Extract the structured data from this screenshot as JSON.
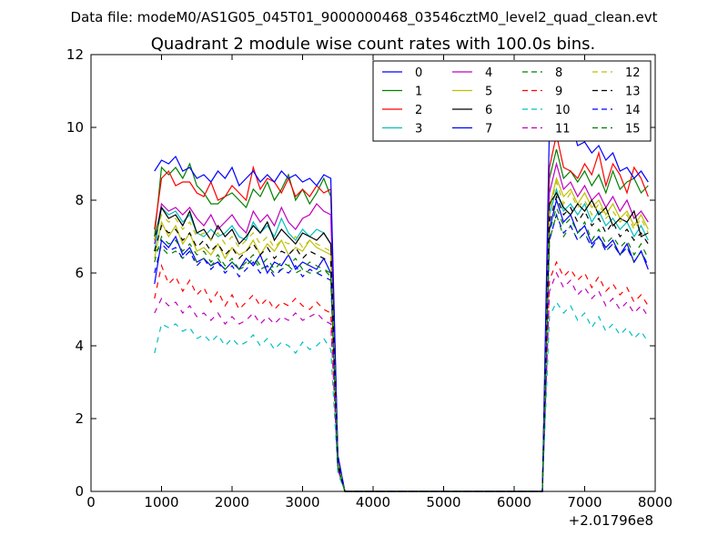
{
  "figure": {
    "suptitle": "Data file: modeM0/AS1G05_045T01_9000000468_03546cztM0_level2_quad_clean.evt"
  },
  "chart_data": {
    "type": "line",
    "title": "Quadrant 2 module wise count rates with 100.0s bins.",
    "xlabel": "",
    "ylabel": "",
    "x_offset_label": "+2.01796e8",
    "xlim": [
      0,
      8000
    ],
    "ylim": [
      0,
      12
    ],
    "xticks": [
      0,
      1000,
      2000,
      3000,
      4000,
      5000,
      6000,
      7000,
      8000
    ],
    "yticks": [
      0,
      2,
      4,
      6,
      8,
      10,
      12
    ],
    "grid": false,
    "legend": {
      "placement": "top-right",
      "columns": 4
    },
    "x": [
      900,
      1000,
      1100,
      1200,
      1300,
      1400,
      1500,
      1600,
      1700,
      1800,
      1900,
      2000,
      2100,
      2200,
      2300,
      2400,
      2500,
      2600,
      2700,
      2800,
      2900,
      3000,
      3100,
      3200,
      3300,
      3400,
      3500,
      3600,
      3700,
      3800,
      3900,
      4000,
      4100,
      4200,
      4300,
      4400,
      4500,
      4600,
      4700,
      4800,
      4900,
      5000,
      5100,
      5200,
      5300,
      5400,
      5500,
      5600,
      5700,
      5800,
      5900,
      6000,
      6100,
      6200,
      6300,
      6400,
      6500,
      6600,
      6700,
      6800,
      6900,
      7000,
      7100,
      7200,
      7300,
      7400,
      7500,
      7600,
      7700,
      7800,
      7900
    ],
    "series": [
      {
        "name": "0",
        "color": "#0000ff",
        "dash": "solid",
        "values": [
          5.7,
          6.9,
          6.7,
          7.0,
          6.5,
          6.7,
          6.3,
          6.4,
          6.2,
          6.3,
          6.1,
          6.3,
          6.1,
          6.4,
          6.2,
          6.5,
          6.0,
          6.3,
          6.2,
          6.5,
          6.1,
          6.3,
          6.2,
          6.1,
          6.4,
          6.0,
          0.8,
          0,
          0,
          0,
          0,
          0,
          0,
          0,
          0,
          0,
          0,
          0,
          0,
          0,
          0,
          0,
          0,
          0,
          0,
          0,
          0,
          0,
          0,
          0,
          0,
          0,
          0,
          0,
          0,
          0,
          7.2,
          8.0,
          7.4,
          7.6,
          7.1,
          7.3,
          6.8,
          7.0,
          6.7,
          6.9,
          6.5,
          6.8,
          6.3,
          6.6,
          6.1
        ]
      },
      {
        "name": "1",
        "color": "#008000",
        "dash": "solid",
        "values": [
          7.0,
          8.9,
          8.7,
          8.9,
          8.6,
          9.0,
          8.4,
          8.2,
          7.9,
          7.9,
          8.1,
          8.2,
          8.0,
          7.8,
          8.3,
          8.1,
          8.5,
          8.0,
          8.3,
          8.7,
          8.0,
          8.3,
          7.9,
          8.2,
          8.6,
          8.1,
          0.9,
          0,
          0,
          0,
          0,
          0,
          0,
          0,
          0,
          0,
          0,
          0,
          0,
          0,
          0,
          0,
          0,
          0,
          0,
          0,
          0,
          0,
          0,
          0,
          0,
          0,
          0,
          0,
          0,
          0,
          8.6,
          9.4,
          8.6,
          8.8,
          8.5,
          8.8,
          8.4,
          8.7,
          8.2,
          8.8,
          8.3,
          8.5,
          8.6,
          8.2,
          8.4
        ]
      },
      {
        "name": "2",
        "color": "#ff0000",
        "dash": "solid",
        "values": [
          7.2,
          8.6,
          8.8,
          8.4,
          8.5,
          8.5,
          8.2,
          8.1,
          8.5,
          8.0,
          8.1,
          8.4,
          8.2,
          8.0,
          8.9,
          8.3,
          8.6,
          8.5,
          8.2,
          8.6,
          8.1,
          8.3,
          8.1,
          8.4,
          8.2,
          8.3,
          0.9,
          0,
          0,
          0,
          0,
          0,
          0,
          0,
          0,
          0,
          0,
          0,
          0,
          0,
          0,
          0,
          0,
          0,
          0,
          0,
          0,
          0,
          0,
          0,
          0,
          0,
          0,
          0,
          0,
          0,
          8.9,
          9.8,
          8.9,
          8.8,
          8.6,
          9.0,
          8.7,
          9.3,
          8.4,
          9.0,
          8.7,
          8.2,
          8.9,
          8.6,
          8.1
        ]
      },
      {
        "name": "3",
        "color": "#00bfbf",
        "dash": "solid",
        "values": [
          6.6,
          7.8,
          7.6,
          7.7,
          7.4,
          7.6,
          7.1,
          7.0,
          7.2,
          7.0,
          7.1,
          7.3,
          7.0,
          6.9,
          7.4,
          7.1,
          7.3,
          7.0,
          7.5,
          7.1,
          6.9,
          7.2,
          7.0,
          7.2,
          7.1,
          6.8,
          0.8,
          0,
          0,
          0,
          0,
          0,
          0,
          0,
          0,
          0,
          0,
          0,
          0,
          0,
          0,
          0,
          0,
          0,
          0,
          0,
          0,
          0,
          0,
          0,
          0,
          0,
          0,
          0,
          0,
          0,
          7.6,
          8.3,
          7.7,
          7.9,
          7.6,
          7.9,
          7.4,
          7.7,
          7.3,
          7.5,
          7.2,
          7.4,
          7.0,
          7.3,
          6.9
        ]
      },
      {
        "name": "4",
        "color": "#bf00bf",
        "dash": "solid",
        "values": [
          6.8,
          7.9,
          7.7,
          7.8,
          7.6,
          7.8,
          7.5,
          7.3,
          7.6,
          7.2,
          7.4,
          7.6,
          7.3,
          7.1,
          7.7,
          7.4,
          7.6,
          7.3,
          7.8,
          7.4,
          7.2,
          7.5,
          7.6,
          7.9,
          7.7,
          7.6,
          0.8,
          0,
          0,
          0,
          0,
          0,
          0,
          0,
          0,
          0,
          0,
          0,
          0,
          0,
          0,
          0,
          0,
          0,
          0,
          0,
          0,
          0,
          0,
          0,
          0,
          0,
          0,
          0,
          0,
          0,
          8.2,
          9.0,
          8.3,
          8.5,
          8.1,
          8.4,
          8.0,
          8.2,
          7.8,
          8.1,
          7.7,
          8.0,
          7.5,
          7.7,
          7.4
        ]
      },
      {
        "name": "5",
        "color": "#bfbf00",
        "dash": "solid",
        "values": [
          6.4,
          7.4,
          7.0,
          7.3,
          6.8,
          7.1,
          6.6,
          6.7,
          6.5,
          6.8,
          6.4,
          6.7,
          6.5,
          6.6,
          6.9,
          6.5,
          6.8,
          6.6,
          6.9,
          6.5,
          6.7,
          6.6,
          6.9,
          6.7,
          6.6,
          6.5,
          0.8,
          0,
          0,
          0,
          0,
          0,
          0,
          0,
          0,
          0,
          0,
          0,
          0,
          0,
          0,
          0,
          0,
          0,
          0,
          0,
          0,
          0,
          0,
          0,
          0,
          0,
          0,
          0,
          0,
          0,
          7.8,
          8.6,
          8.1,
          8.3,
          7.9,
          8.2,
          7.8,
          8.0,
          7.6,
          7.9,
          7.5,
          7.7,
          7.3,
          7.6,
          7.2
        ]
      },
      {
        "name": "6",
        "color": "#000000",
        "dash": "solid",
        "values": [
          6.9,
          7.8,
          7.5,
          7.6,
          7.3,
          7.7,
          7.1,
          7.2,
          6.9,
          7.3,
          7.0,
          7.2,
          6.8,
          7.0,
          7.3,
          7.1,
          7.4,
          6.9,
          7.2,
          7.0,
          6.8,
          7.1,
          7.0,
          6.9,
          7.1,
          6.8,
          0.8,
          0,
          0,
          0,
          0,
          0,
          0,
          0,
          0,
          0,
          0,
          0,
          0,
          0,
          0,
          0,
          0,
          0,
          0,
          0,
          0,
          0,
          0,
          0,
          0,
          0,
          0,
          0,
          0,
          0,
          7.9,
          8.2,
          7.8,
          7.6,
          7.9,
          7.7,
          8.0,
          7.6,
          7.8,
          7.3,
          7.5,
          7.4,
          7.7,
          7.0,
          7.1
        ]
      },
      {
        "name": "7",
        "color": "#0000ff",
        "dash": "solid",
        "values": [
          8.8,
          9.1,
          9.0,
          9.2,
          8.8,
          8.9,
          8.6,
          8.7,
          8.5,
          8.8,
          8.6,
          8.9,
          8.4,
          8.6,
          8.8,
          8.5,
          8.7,
          8.5,
          8.8,
          8.6,
          8.7,
          8.5,
          8.6,
          8.4,
          8.7,
          8.6,
          1.0,
          0,
          0,
          0,
          0,
          0,
          0,
          0,
          0,
          0,
          0,
          0,
          0,
          0,
          0,
          0,
          0,
          0,
          0,
          0,
          0,
          0,
          0,
          0,
          0,
          0,
          0,
          0,
          0,
          0,
          10.1,
          10.3,
          9.7,
          10.2,
          9.5,
          9.6,
          9.3,
          9.5,
          9.1,
          9.3,
          8.8,
          8.9,
          8.6,
          8.8,
          8.5
        ]
      },
      {
        "name": "8",
        "color": "#008000",
        "dash": "dashed",
        "values": [
          6.6,
          6.7,
          6.5,
          6.6,
          6.4,
          6.6,
          6.3,
          6.4,
          6.2,
          6.4,
          6.1,
          6.3,
          6.1,
          6.2,
          6.4,
          6.1,
          6.2,
          6.0,
          6.1,
          6.2,
          6.0,
          6.1,
          6.0,
          6.0,
          6.1,
          5.9,
          0.7,
          0,
          0,
          0,
          0,
          0,
          0,
          0,
          0,
          0,
          0,
          0,
          0,
          0,
          0,
          0,
          0,
          0,
          0,
          0,
          0,
          0,
          0,
          0,
          0,
          0,
          0,
          0,
          0,
          0,
          6.9,
          7.6,
          7.0,
          7.3,
          6.9,
          7.1,
          6.7,
          7.0,
          6.6,
          6.8,
          6.5,
          6.7,
          6.3,
          6.6,
          6.2
        ]
      },
      {
        "name": "9",
        "color": "#ff0000",
        "dash": "dashed",
        "values": [
          5.3,
          6.2,
          5.7,
          5.9,
          5.5,
          5.8,
          5.4,
          5.6,
          5.2,
          5.5,
          5.1,
          5.4,
          5.0,
          5.2,
          5.4,
          5.1,
          5.3,
          5.0,
          5.2,
          5.1,
          5.3,
          5.1,
          5.0,
          5.2,
          5.0,
          4.9,
          0.6,
          0,
          0,
          0,
          0,
          0,
          0,
          0,
          0,
          0,
          0,
          0,
          0,
          0,
          0,
          0,
          0,
          0,
          0,
          0,
          0,
          0,
          0,
          0,
          0,
          0,
          0,
          0,
          0,
          0,
          5.8,
          6.3,
          5.9,
          6.1,
          5.8,
          6.0,
          5.6,
          5.9,
          5.5,
          5.7,
          5.4,
          5.6,
          5.2,
          5.4,
          5.1
        ]
      },
      {
        "name": "10",
        "color": "#00bfbf",
        "dash": "dashed",
        "values": [
          3.8,
          4.6,
          4.5,
          4.6,
          4.4,
          4.5,
          4.2,
          4.3,
          4.1,
          4.3,
          4.0,
          4.2,
          4.0,
          4.1,
          4.3,
          4.0,
          4.2,
          3.9,
          4.1,
          4.0,
          3.8,
          4.1,
          3.9,
          4.0,
          4.2,
          3.9,
          0.5,
          0,
          0,
          0,
          0,
          0,
          0,
          0,
          0,
          0,
          0,
          0,
          0,
          0,
          0,
          0,
          0,
          0,
          0,
          0,
          0,
          0,
          0,
          0,
          0,
          0,
          0,
          0,
          0,
          0,
          4.8,
          5.2,
          4.9,
          5.1,
          4.7,
          4.9,
          4.5,
          4.8,
          4.4,
          4.6,
          4.3,
          4.5,
          4.2,
          4.4,
          4.1
        ]
      },
      {
        "name": "11",
        "color": "#bf00bf",
        "dash": "dashed",
        "values": [
          4.9,
          5.3,
          5.1,
          5.2,
          4.9,
          5.1,
          4.8,
          4.9,
          4.7,
          4.9,
          4.6,
          4.8,
          4.6,
          4.7,
          4.9,
          4.6,
          4.8,
          4.6,
          4.8,
          4.7,
          4.9,
          4.7,
          4.8,
          4.9,
          4.7,
          4.6,
          0.6,
          0,
          0,
          0,
          0,
          0,
          0,
          0,
          0,
          0,
          0,
          0,
          0,
          0,
          0,
          0,
          0,
          0,
          0,
          0,
          0,
          0,
          0,
          0,
          0,
          0,
          0,
          0,
          0,
          0,
          5.5,
          6.0,
          5.6,
          5.8,
          5.4,
          5.6,
          5.3,
          5.5,
          5.1,
          5.3,
          5.0,
          5.2,
          4.9,
          5.1,
          4.8
        ]
      },
      {
        "name": "12",
        "color": "#bfbf00",
        "dash": "dashed",
        "values": [
          6.9,
          7.6,
          7.4,
          7.5,
          7.2,
          7.4,
          7.0,
          7.1,
          6.9,
          7.1,
          6.8,
          7.0,
          6.7,
          6.9,
          7.1,
          6.8,
          7.0,
          6.7,
          6.9,
          6.8,
          7.0,
          6.7,
          6.9,
          6.8,
          6.7,
          6.6,
          0.8,
          0,
          0,
          0,
          0,
          0,
          0,
          0,
          0,
          0,
          0,
          0,
          0,
          0,
          0,
          0,
          0,
          0,
          0,
          0,
          0,
          0,
          0,
          0,
          0,
          0,
          0,
          0,
          0,
          0,
          7.7,
          8.5,
          7.9,
          8.2,
          7.8,
          8.0,
          7.6,
          7.9,
          7.5,
          7.7,
          7.4,
          7.6,
          7.2,
          7.5,
          7.1
        ]
      },
      {
        "name": "13",
        "color": "#000000",
        "dash": "dashed",
        "values": [
          6.6,
          7.3,
          7.1,
          7.2,
          6.9,
          7.1,
          6.7,
          6.9,
          6.6,
          6.8,
          6.5,
          6.7,
          6.4,
          6.6,
          6.8,
          6.5,
          6.7,
          6.4,
          6.6,
          6.5,
          6.7,
          6.4,
          6.6,
          6.5,
          6.4,
          6.3,
          0.7,
          0,
          0,
          0,
          0,
          0,
          0,
          0,
          0,
          0,
          0,
          0,
          0,
          0,
          0,
          0,
          0,
          0,
          0,
          0,
          0,
          0,
          0,
          0,
          0,
          0,
          0,
          0,
          0,
          0,
          7.4,
          8.1,
          7.6,
          7.8,
          7.4,
          7.7,
          7.3,
          7.5,
          7.1,
          7.4,
          7.0,
          7.2,
          6.9,
          7.1,
          6.8
        ]
      },
      {
        "name": "14",
        "color": "#0000ff",
        "dash": "dashed",
        "values": [
          6.0,
          6.8,
          6.6,
          6.7,
          6.4,
          6.6,
          6.2,
          6.4,
          6.1,
          6.3,
          6.0,
          6.2,
          5.9,
          6.1,
          6.3,
          6.0,
          6.2,
          5.9,
          6.1,
          6.0,
          6.2,
          5.9,
          6.1,
          6.0,
          5.9,
          5.8,
          0.7,
          0,
          0,
          0,
          0,
          0,
          0,
          0,
          0,
          0,
          0,
          0,
          0,
          0,
          0,
          0,
          0,
          0,
          0,
          0,
          0,
          0,
          0,
          0,
          0,
          0,
          0,
          0,
          0,
          0,
          6.9,
          7.6,
          7.1,
          7.3,
          6.9,
          7.1,
          6.7,
          7.0,
          6.6,
          6.8,
          6.5,
          6.7,
          6.3,
          6.6,
          6.2
        ]
      },
      {
        "name": "15",
        "color": "#008000",
        "dash": "dashed",
        "values": [
          6.3,
          7.0,
          6.8,
          6.9,
          6.6,
          6.8,
          6.5,
          6.6,
          6.3,
          6.5,
          6.2,
          6.4,
          6.1,
          6.3,
          6.5,
          6.2,
          6.4,
          6.1,
          6.3,
          6.2,
          6.4,
          6.1,
          6.3,
          6.2,
          6.1,
          6.0,
          0.7,
          0,
          0,
          0,
          0,
          0,
          0,
          0,
          0,
          0,
          0,
          0,
          0,
          0,
          0,
          0,
          0,
          0,
          0,
          0,
          0,
          0,
          0,
          0,
          0,
          0,
          0,
          0,
          0,
          0,
          7.1,
          7.8,
          7.3,
          7.5,
          7.1,
          7.4,
          6.9,
          7.2,
          6.8,
          7.0,
          6.7,
          6.9,
          6.5,
          6.8,
          6.4
        ]
      }
    ]
  }
}
